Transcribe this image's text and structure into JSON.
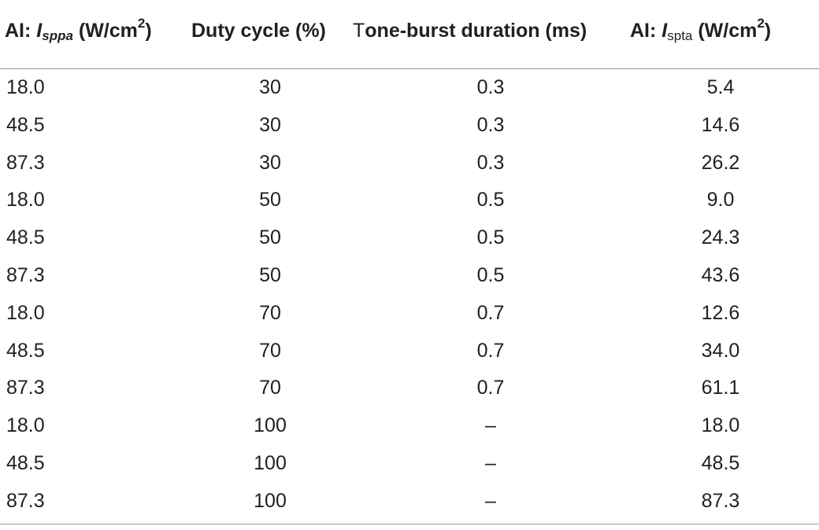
{
  "table": {
    "headers": {
      "col1": {
        "prefix": "AI: ",
        "symbol": "I",
        "subscript": "sppa",
        "unit_pre": " (W/cm",
        "unit_sup": "2",
        "unit_post": ")"
      },
      "col2": {
        "text": "Duty cycle (%)"
      },
      "col3": {
        "first_letter": "T",
        "rest": "one-burst duration (ms)"
      },
      "col4": {
        "prefix": "AI: ",
        "symbol": "I",
        "subscript": "spta",
        "unit_pre": " (W/cm",
        "unit_sup": "2",
        "unit_post": ")"
      }
    },
    "rows": [
      [
        "18.0",
        "30",
        "0.3",
        "5.4"
      ],
      [
        "48.5",
        "30",
        "0.3",
        "14.6"
      ],
      [
        "87.3",
        "30",
        "0.3",
        "26.2"
      ],
      [
        "18.0",
        "50",
        "0.5",
        "9.0"
      ],
      [
        "48.5",
        "50",
        "0.5",
        "24.3"
      ],
      [
        "87.3",
        "50",
        "0.5",
        "43.6"
      ],
      [
        "18.0",
        "70",
        "0.7",
        "12.6"
      ],
      [
        "48.5",
        "70",
        "0.7",
        "34.0"
      ],
      [
        "87.3",
        "70",
        "0.7",
        "61.1"
      ],
      [
        "18.0",
        "100",
        "–",
        "18.0"
      ],
      [
        "48.5",
        "100",
        "–",
        "48.5"
      ],
      [
        "87.3",
        "100",
        "–",
        "87.3"
      ]
    ]
  },
  "colors": {
    "text": "#231f20",
    "rule": "#9a9a9a",
    "background": "#ffffff"
  }
}
